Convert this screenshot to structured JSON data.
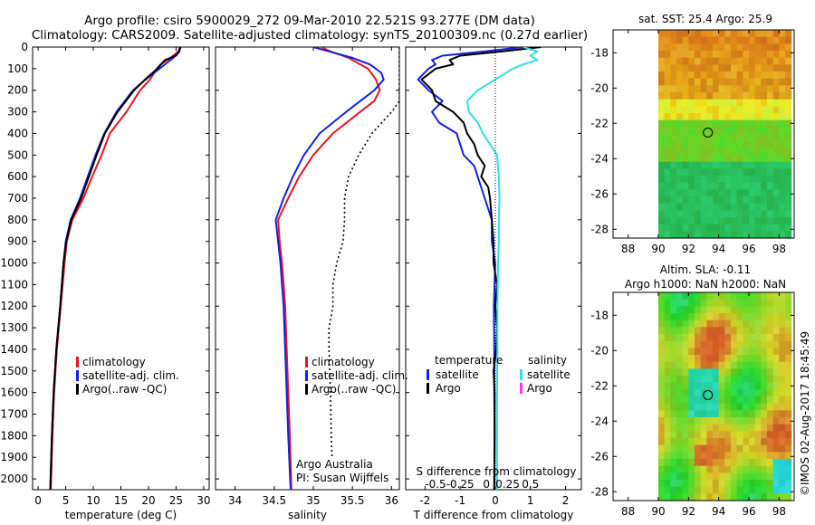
{
  "header": {
    "line1": "Argo profile: csiro 5900029_272 09-Mar-2010 22.521S 93.277E (DM data)",
    "line2": "Climatology: CARS2009. Satellite-adjusted climatology: synTS_20100309.nc (0.27d earlier)"
  },
  "credit": "Argo Australia",
  "pi": "PI: Susan Wijffels",
  "timestamp": "©IMOS 02-Aug-2017 18:45:49",
  "colors": {
    "climatology": "#e8141c",
    "satellite": "#1520e0",
    "argo": "#000000",
    "salinity_sat": "#30e0e8",
    "salinity_argo": "#ff33ff"
  },
  "chart_data": [
    {
      "id": "temperature",
      "type": "line",
      "xlabel": "temperature (deg C)",
      "ylim": [
        2050,
        0
      ],
      "xlim": [
        -1,
        31
      ],
      "xticks": [
        0,
        5,
        10,
        15,
        20,
        25,
        30
      ],
      "yticks": [
        0,
        100,
        200,
        300,
        400,
        500,
        600,
        700,
        800,
        900,
        1000,
        1100,
        1200,
        1300,
        1400,
        1500,
        1600,
        1700,
        1800,
        1900,
        2000
      ],
      "legend": [
        "climatology",
        "satellite-adj. clim.",
        "Argo(..raw -QC)"
      ],
      "series": [
        {
          "name": "climatology",
          "color": "#e8141c",
          "depth": [
            0,
            20,
            50,
            80,
            100,
            150,
            200,
            300,
            400,
            500,
            600,
            700,
            800,
            900,
            1000,
            1200,
            1400,
            1600,
            1800,
            2050
          ],
          "values": [
            25.7,
            25.4,
            24.0,
            22.2,
            21.5,
            20.3,
            18.5,
            16.0,
            13.0,
            11.5,
            9.8,
            8.2,
            6.2,
            5.2,
            4.8,
            4.1,
            3.4,
            2.9,
            2.6,
            2.3
          ]
        },
        {
          "name": "satellite-adj. clim.",
          "color": "#1520e0",
          "depth": [
            0,
            20,
            50,
            80,
            100,
            150,
            200,
            300,
            400,
            500,
            600,
            700,
            800,
            900,
            1000,
            1200,
            1400,
            1600,
            1800,
            2050
          ],
          "values": [
            25.8,
            25.5,
            24.5,
            23.0,
            22.0,
            19.5,
            17.2,
            14.2,
            12.0,
            10.4,
            9.0,
            7.6,
            5.9,
            5.0,
            4.6,
            4.0,
            3.3,
            2.8,
            2.5,
            2.2
          ]
        },
        {
          "name": "Argo(..raw -QC)",
          "color": "#000000",
          "depth": [
            0,
            20,
            40,
            60,
            80,
            100,
            150,
            200,
            300,
            400,
            500,
            600,
            700,
            800,
            900,
            1000,
            1200,
            1400,
            1600,
            1800,
            2050
          ],
          "values": [
            25.8,
            25.6,
            25.0,
            23.0,
            22.3,
            21.6,
            19.4,
            17.4,
            14.4,
            12.1,
            10.6,
            9.2,
            7.8,
            6.0,
            5.1,
            4.6,
            4.0,
            3.3,
            2.8,
            2.5,
            2.2
          ]
        }
      ]
    },
    {
      "id": "salinity",
      "type": "line",
      "xlabel": "salinity",
      "ylim": [
        2050,
        0
      ],
      "xlim": [
        33.75,
        36.1
      ],
      "xticks": [
        34,
        34.5,
        35,
        35.5,
        36
      ],
      "legend": [
        "climatology",
        "satellite-adj. clim.",
        "Argo(..raw -QC)"
      ],
      "series": [
        {
          "name": "climatology",
          "color": "#e8141c",
          "depth": [
            0,
            20,
            50,
            80,
            100,
            150,
            200,
            250,
            300,
            400,
            500,
            600,
            700,
            800,
            900,
            1000,
            1100,
            1200,
            1400,
            1600,
            1800,
            2050
          ],
          "values": [
            35.1,
            35.22,
            35.45,
            35.6,
            35.7,
            35.8,
            35.85,
            35.78,
            35.6,
            35.25,
            35.0,
            34.82,
            34.68,
            34.55,
            34.57,
            34.6,
            34.62,
            34.64,
            34.66,
            34.68,
            34.7,
            34.72
          ]
        },
        {
          "name": "satellite-adj. clim.",
          "color": "#1520e0",
          "depth": [
            0,
            20,
            50,
            80,
            100,
            120,
            150,
            200,
            300,
            400,
            500,
            600,
            700,
            800,
            900,
            1000,
            1100,
            1200,
            1400,
            1600,
            1800,
            2050
          ],
          "values": [
            35.0,
            35.2,
            35.5,
            35.72,
            35.8,
            35.87,
            35.9,
            35.78,
            35.42,
            35.08,
            34.88,
            34.74,
            34.62,
            34.52,
            34.55,
            34.58,
            34.6,
            34.62,
            34.64,
            34.66,
            34.68,
            34.71
          ]
        },
        {
          "name": "Argo(..raw -QC)",
          "color": "#000000",
          "dashed": true,
          "depth": [
            0,
            20,
            50,
            80,
            100,
            150,
            200,
            250,
            300,
            400,
            500,
            600,
            700,
            800,
            900,
            1000,
            1100,
            1200,
            1300,
            1400,
            1600,
            1800,
            1900
          ],
          "values": [
            36.1,
            36.1,
            36.1,
            36.1,
            36.1,
            36.1,
            36.1,
            36.1,
            36.0,
            35.75,
            35.58,
            35.45,
            35.4,
            35.4,
            35.38,
            35.3,
            35.25,
            35.25,
            35.2,
            35.2,
            35.22,
            35.23,
            35.24
          ]
        }
      ]
    },
    {
      "id": "difference",
      "type": "line",
      "xlabel": "T difference from climatology",
      "xlabel_top": "S difference from climatology",
      "ylim": [
        2050,
        0
      ],
      "xlim": [
        -2.55,
        2.45
      ],
      "xticks_t": [
        -2,
        -1,
        0,
        1,
        2
      ],
      "xticks_s": [
        "-0.5",
        "-0.25",
        "0",
        "0.25",
        "0.5"
      ],
      "legend_headers": [
        "temperature",
        "salinity"
      ],
      "legend_left": [
        "satellite",
        "Argo"
      ],
      "legend_right": [
        "satellite",
        "Argo"
      ],
      "series": [
        {
          "name": "temperature satellite",
          "color": "#1520e0",
          "depth": [
            0,
            20,
            40,
            60,
            80,
            100,
            150,
            200,
            250,
            300,
            350,
            400,
            450,
            500,
            550,
            600,
            650,
            700,
            800,
            900,
            1000,
            1200,
            1400,
            1600,
            1800,
            2050
          ],
          "values": [
            0.8,
            -0.3,
            -1.5,
            -1.8,
            -1.7,
            -1.9,
            -2.2,
            -1.9,
            -1.5,
            -1.8,
            -1.6,
            -1.1,
            -1.0,
            -0.9,
            -0.6,
            -0.5,
            -0.4,
            -0.3,
            -0.1,
            -0.1,
            0,
            -0.04,
            -0.03,
            -0.03,
            -0.02,
            -0.03
          ]
        },
        {
          "name": "temperature Argo",
          "color": "#000000",
          "depth": [
            0,
            20,
            40,
            60,
            80,
            100,
            150,
            200,
            250,
            300,
            350,
            400,
            450,
            500,
            550,
            600,
            650,
            700,
            800,
            900,
            1000,
            1100,
            1200,
            1300,
            1400,
            1500,
            1600,
            1800,
            2050
          ],
          "values": [
            1.3,
            0.2,
            -1.0,
            -1.3,
            -1.2,
            -1.7,
            -2.1,
            -1.8,
            -1.7,
            -1.2,
            -0.9,
            -0.8,
            -0.6,
            -0.5,
            -0.3,
            -0.4,
            -0.2,
            -0.15,
            -0.1,
            -0.05,
            -0.05,
            0.05,
            0,
            0.05,
            0.03,
            -0.05,
            -0.02,
            -0.02,
            -0.03
          ]
        },
        {
          "name": "salinity satellite",
          "color": "#30e0e8",
          "depth": [
            0,
            20,
            40,
            60,
            80,
            100,
            150,
            200,
            250,
            300,
            350,
            400,
            450,
            500,
            600,
            700,
            800,
            900,
            1000,
            1200,
            1400,
            1600,
            1800,
            2050
          ],
          "values": [
            0.8,
            1.2,
            1.0,
            1.2,
            0.8,
            0.5,
            0.0,
            -0.5,
            -0.8,
            -0.75,
            -0.5,
            -0.35,
            -0.15,
            0.05,
            0.1,
            0.12,
            0.1,
            0.1,
            0.08,
            0.06,
            0.06,
            0.05,
            0.05,
            0.05
          ]
        }
      ]
    },
    {
      "id": "map_sst",
      "type": "heatmap",
      "title": "sat. SST: 25.4 Argo: 25.9",
      "xlim": [
        87,
        99
      ],
      "ylim": [
        -28.5,
        -16.7
      ],
      "xticks": [
        88,
        90,
        92,
        94,
        96,
        98
      ],
      "yticks": [
        -18,
        -20,
        -22,
        -24,
        -26,
        -28
      ],
      "marker": [
        93.28,
        -22.52
      ]
    },
    {
      "id": "map_sla",
      "type": "heatmap",
      "title": "Altim. SLA: -0.11",
      "subtitle": "Argo h1000: NaN h2000: NaN",
      "xlim": [
        87,
        99
      ],
      "ylim": [
        -28.5,
        -16.7
      ],
      "xticks": [
        88,
        90,
        92,
        94,
        96,
        98
      ],
      "yticks": [
        -18,
        -20,
        -22,
        -24,
        -26,
        -28
      ],
      "marker": [
        93.28,
        -22.52
      ]
    }
  ]
}
